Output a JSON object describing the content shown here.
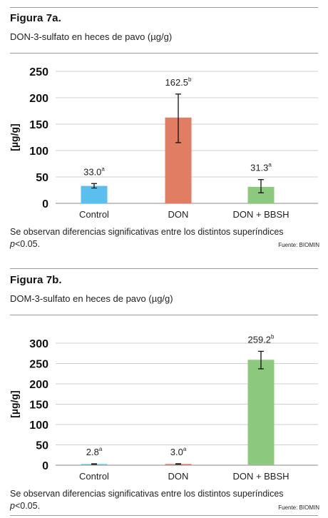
{
  "figures": [
    {
      "title": "Figura 7a.",
      "subtitle": "DON-3-sulfato en heces de pavo (µg/g)",
      "note_main": "Se observan diferencias significativas entre los distintos superíndices",
      "note_p_italic": "p",
      "note_p_rest": "<0.05.",
      "source": "Fuente: BIOMIN",
      "chart_data": {
        "type": "bar",
        "categories": [
          "Control",
          "DON",
          "DON + BBSH"
        ],
        "values": [
          33.0,
          162.5,
          31.3
        ],
        "error_low": [
          29.0,
          115.0,
          20.0
        ],
        "error_high": [
          37.5,
          207.0,
          45.0
        ],
        "data_labels": [
          "33.0",
          "162.5",
          "31.3"
        ],
        "superscripts": [
          "a",
          "b",
          "a"
        ],
        "colors": [
          "#5bbfee",
          "#e07d63",
          "#8cc97e"
        ],
        "ylabel": "[µg/g]",
        "ylim": [
          0,
          250
        ],
        "yticks": [
          0,
          50,
          100,
          150,
          200,
          250
        ],
        "grid": true
      }
    },
    {
      "title": "Figura 7b.",
      "subtitle": "DOM-3-sulfato en heces de pavo (µg/g)",
      "note_main": "Se observan diferencias significativas entre los distintos superíndices",
      "note_p_italic": "p",
      "note_p_rest": "<0.05.",
      "source": "Fuente: BIOMIN",
      "chart_data": {
        "type": "bar",
        "categories": [
          "Control",
          "DON",
          "DON + BBSH"
        ],
        "values": [
          2.8,
          3.0,
          259.2
        ],
        "error_low": [
          2.2,
          2.4,
          237.0
        ],
        "error_high": [
          3.4,
          3.6,
          280.0
        ],
        "data_labels": [
          "2.8",
          "3.0",
          "259.2"
        ],
        "superscripts": [
          "a",
          "a",
          "b"
        ],
        "colors": [
          "#5bbfee",
          "#e07d63",
          "#8cc97e"
        ],
        "ylabel": "[µg/g]",
        "ylim": [
          0,
          300
        ],
        "yticks": [
          0,
          50,
          100,
          150,
          200,
          250,
          300
        ],
        "grid": true
      }
    }
  ]
}
